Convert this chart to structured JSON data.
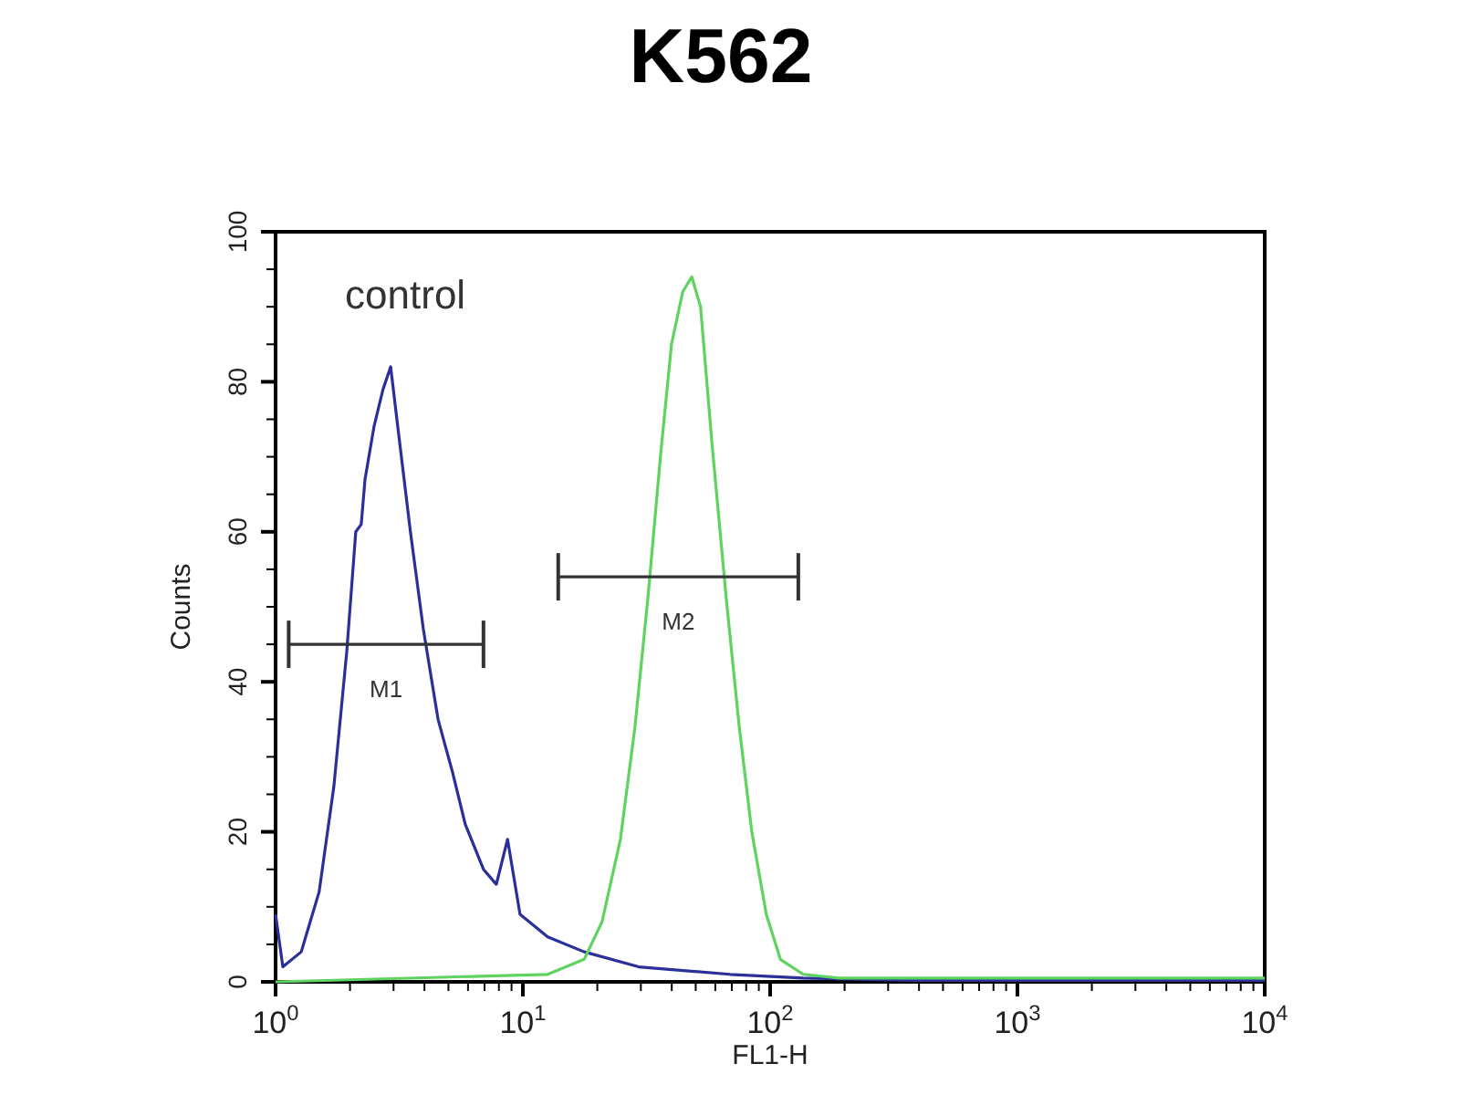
{
  "chart_data": {
    "type": "line",
    "title": "K562",
    "xlabel": "FL1-H",
    "ylabel": "Counts",
    "log": "x",
    "grid": false,
    "line_style": "solid",
    "marker": "none",
    "xlim": [
      1,
      10000
    ],
    "xticks": [
      {
        "value": 1,
        "label": "10$^{0}$"
      },
      {
        "value": 10,
        "label": "10$^{1}$"
      },
      {
        "value": 100,
        "label": "10$^{2}$"
      },
      {
        "value": 1000,
        "label": "10$^{3}$"
      },
      {
        "value": 10000,
        "label": "10$^{4}$"
      }
    ],
    "ylim": [
      0,
      100
    ],
    "yticks": [
      0,
      20,
      40,
      60,
      80,
      100
    ],
    "series": [
      {
        "name": "control",
        "color": "#2a2f9a",
        "x": [
          1.0,
          1.07,
          1.27,
          1.5,
          1.72,
          1.94,
          2.11,
          2.22,
          2.3,
          2.5,
          2.72,
          2.92,
          3.12,
          3.51,
          3.96,
          4.54,
          5.19,
          5.85,
          6.93,
          7.81,
          8.67,
          9.74,
          12.6,
          17.7,
          29.4,
          68.8,
          136,
          377,
          10000
        ],
        "values": [
          9,
          2,
          4,
          12,
          26,
          44,
          60,
          61,
          67,
          74,
          79,
          82,
          74,
          60,
          47,
          35,
          28,
          21,
          15,
          13,
          19,
          9,
          6,
          4,
          2,
          1,
          0.5,
          0.2,
          0.2
        ]
      },
      {
        "color": "#5fd35f",
        "x": [
          1,
          12.6,
          17.7,
          20.9,
          24.8,
          28.4,
          32.0,
          36.0,
          39.9,
          44.3,
          48.2,
          52.3,
          58.1,
          66.5,
          75.0,
          84.3,
          96.5,
          110,
          136,
          190,
          10000
        ],
        "values": [
          0,
          1,
          3,
          8,
          19,
          34,
          51,
          70,
          85,
          92,
          94,
          90,
          72,
          51,
          34,
          20,
          9,
          3,
          1,
          0.5,
          0.5
        ]
      },
      {
        "type": "line",
        "name": "M1",
        "color": "#333333",
        "x": [
          1.13,
          6.93
        ],
        "values": [
          45,
          45
        ]
      },
      {
        "type": "line",
        "name": "M2",
        "color": "#333333",
        "x": [
          13.9,
          130
        ],
        "values": [
          54,
          54
        ]
      }
    ]
  }
}
